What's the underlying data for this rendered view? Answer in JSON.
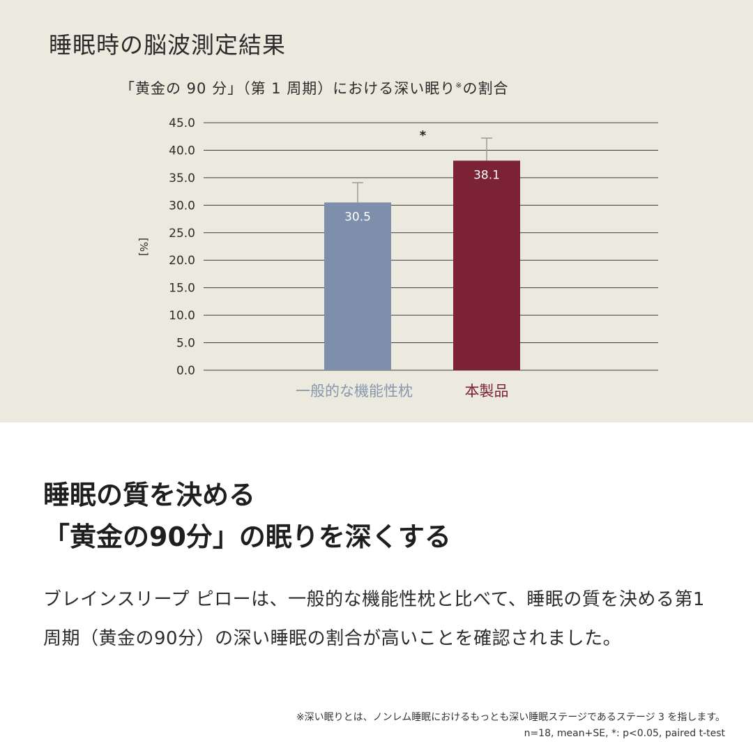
{
  "panel": {
    "title": "睡眠時の脳波測定結果"
  },
  "chart_data": {
    "type": "bar",
    "title": "「黄金の 90 分」（第 1 周期）における深い眠り",
    "title_mark": "※",
    "title_suffix": "の割合",
    "ylabel": "[%]",
    "ylim": [
      0,
      45
    ],
    "ytick_step": 5,
    "ytick_labels": [
      "0.0",
      "5.0",
      "10.0",
      "15.0",
      "20.0",
      "25.0",
      "30.0",
      "35.0",
      "40.0",
      "45.0"
    ],
    "grid": true,
    "categories": [
      "一般的な機能性枕",
      "本製品"
    ],
    "values": [
      30.5,
      38.1
    ],
    "value_labels": [
      "30.5",
      "38.1"
    ],
    "error_upper": [
      34.1,
      42.2
    ],
    "significance": "*",
    "colors": [
      "#7d8fab",
      "#7b2234"
    ],
    "label_colors": [
      "#8797ae",
      "#7b2234"
    ]
  },
  "headline": {
    "line1": "睡眠の質を決める",
    "line2": "「黄金の90分」の眠りを深くする"
  },
  "body": {
    "text": "ブレインスリープ ピローは、一般的な機能性枕と比べて、睡眠の質を決める第1周期（黄金の90分）の深い睡眠の割合が高いことを確認されました。"
  },
  "footnotes": {
    "definition": "※深い眠りとは、ノンレム睡眠におけるもっとも深い睡眠ステージであるステージ 3 を指します。",
    "stats": "n=18, mean+SE, *: p<0.05, paired t-test"
  }
}
